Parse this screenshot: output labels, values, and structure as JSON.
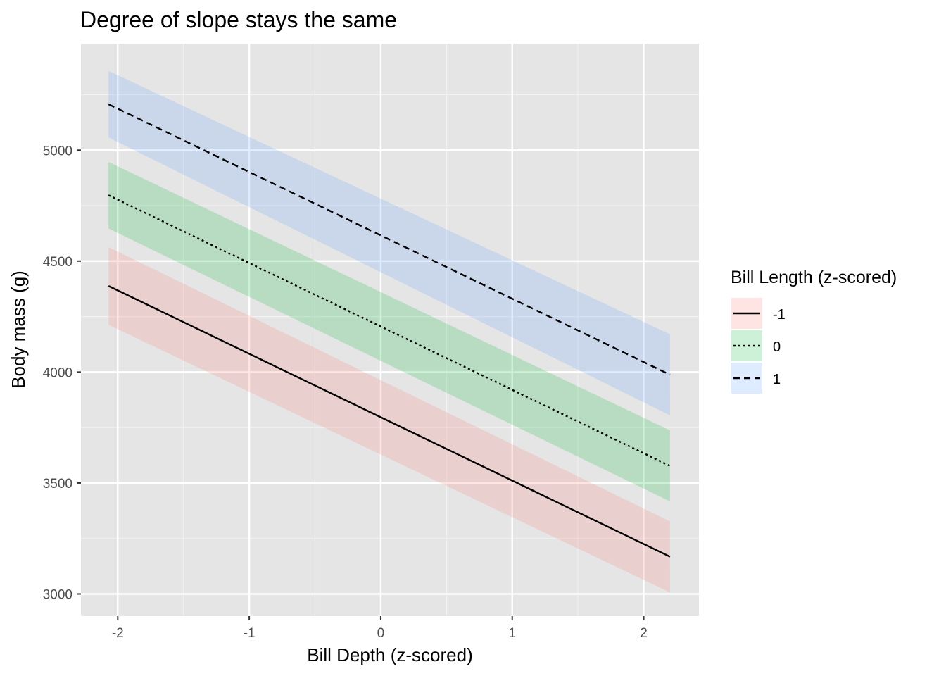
{
  "chart_data": {
    "type": "line",
    "title": "Degree of slope stays the same",
    "xlabel": "Bill Depth (z-scored)",
    "ylabel": "Body mass (g)",
    "xlim": [
      -2.28,
      2.42
    ],
    "ylim": [
      2900,
      5480
    ],
    "x_ticks": [
      -2,
      -1,
      0,
      1,
      2
    ],
    "x_tick_labels": [
      "-2",
      "-1",
      "0",
      "1",
      "2"
    ],
    "y_ticks": [
      3000,
      3500,
      4000,
      4500,
      5000
    ],
    "y_tick_labels": [
      "3000",
      "3500",
      "4000",
      "4500",
      "5000"
    ],
    "grid": true,
    "legend": {
      "title": "Bill Length (z-scored)",
      "placement": "right"
    },
    "series": [
      {
        "name": "-1",
        "line_style": "solid",
        "fill_color": "#F8766D",
        "x": [
          -2.07,
          2.2
        ],
        "y": [
          4388,
          3168
        ],
        "lower": [
          4213,
          3007
        ],
        "upper": [
          4563,
          3327
        ]
      },
      {
        "name": "0",
        "line_style": "dotted",
        "fill_color": "#00BA38",
        "x": [
          -2.07,
          2.2
        ],
        "y": [
          4797,
          3577
        ],
        "lower": [
          4647,
          3417
        ],
        "upper": [
          4947,
          3737
        ]
      },
      {
        "name": "1",
        "line_style": "dashed",
        "fill_color": "#619CFF",
        "x": [
          -2.07,
          2.2
        ],
        "y": [
          5207,
          3988
        ],
        "lower": [
          5057,
          3805
        ],
        "upper": [
          5357,
          4170
        ]
      }
    ]
  }
}
